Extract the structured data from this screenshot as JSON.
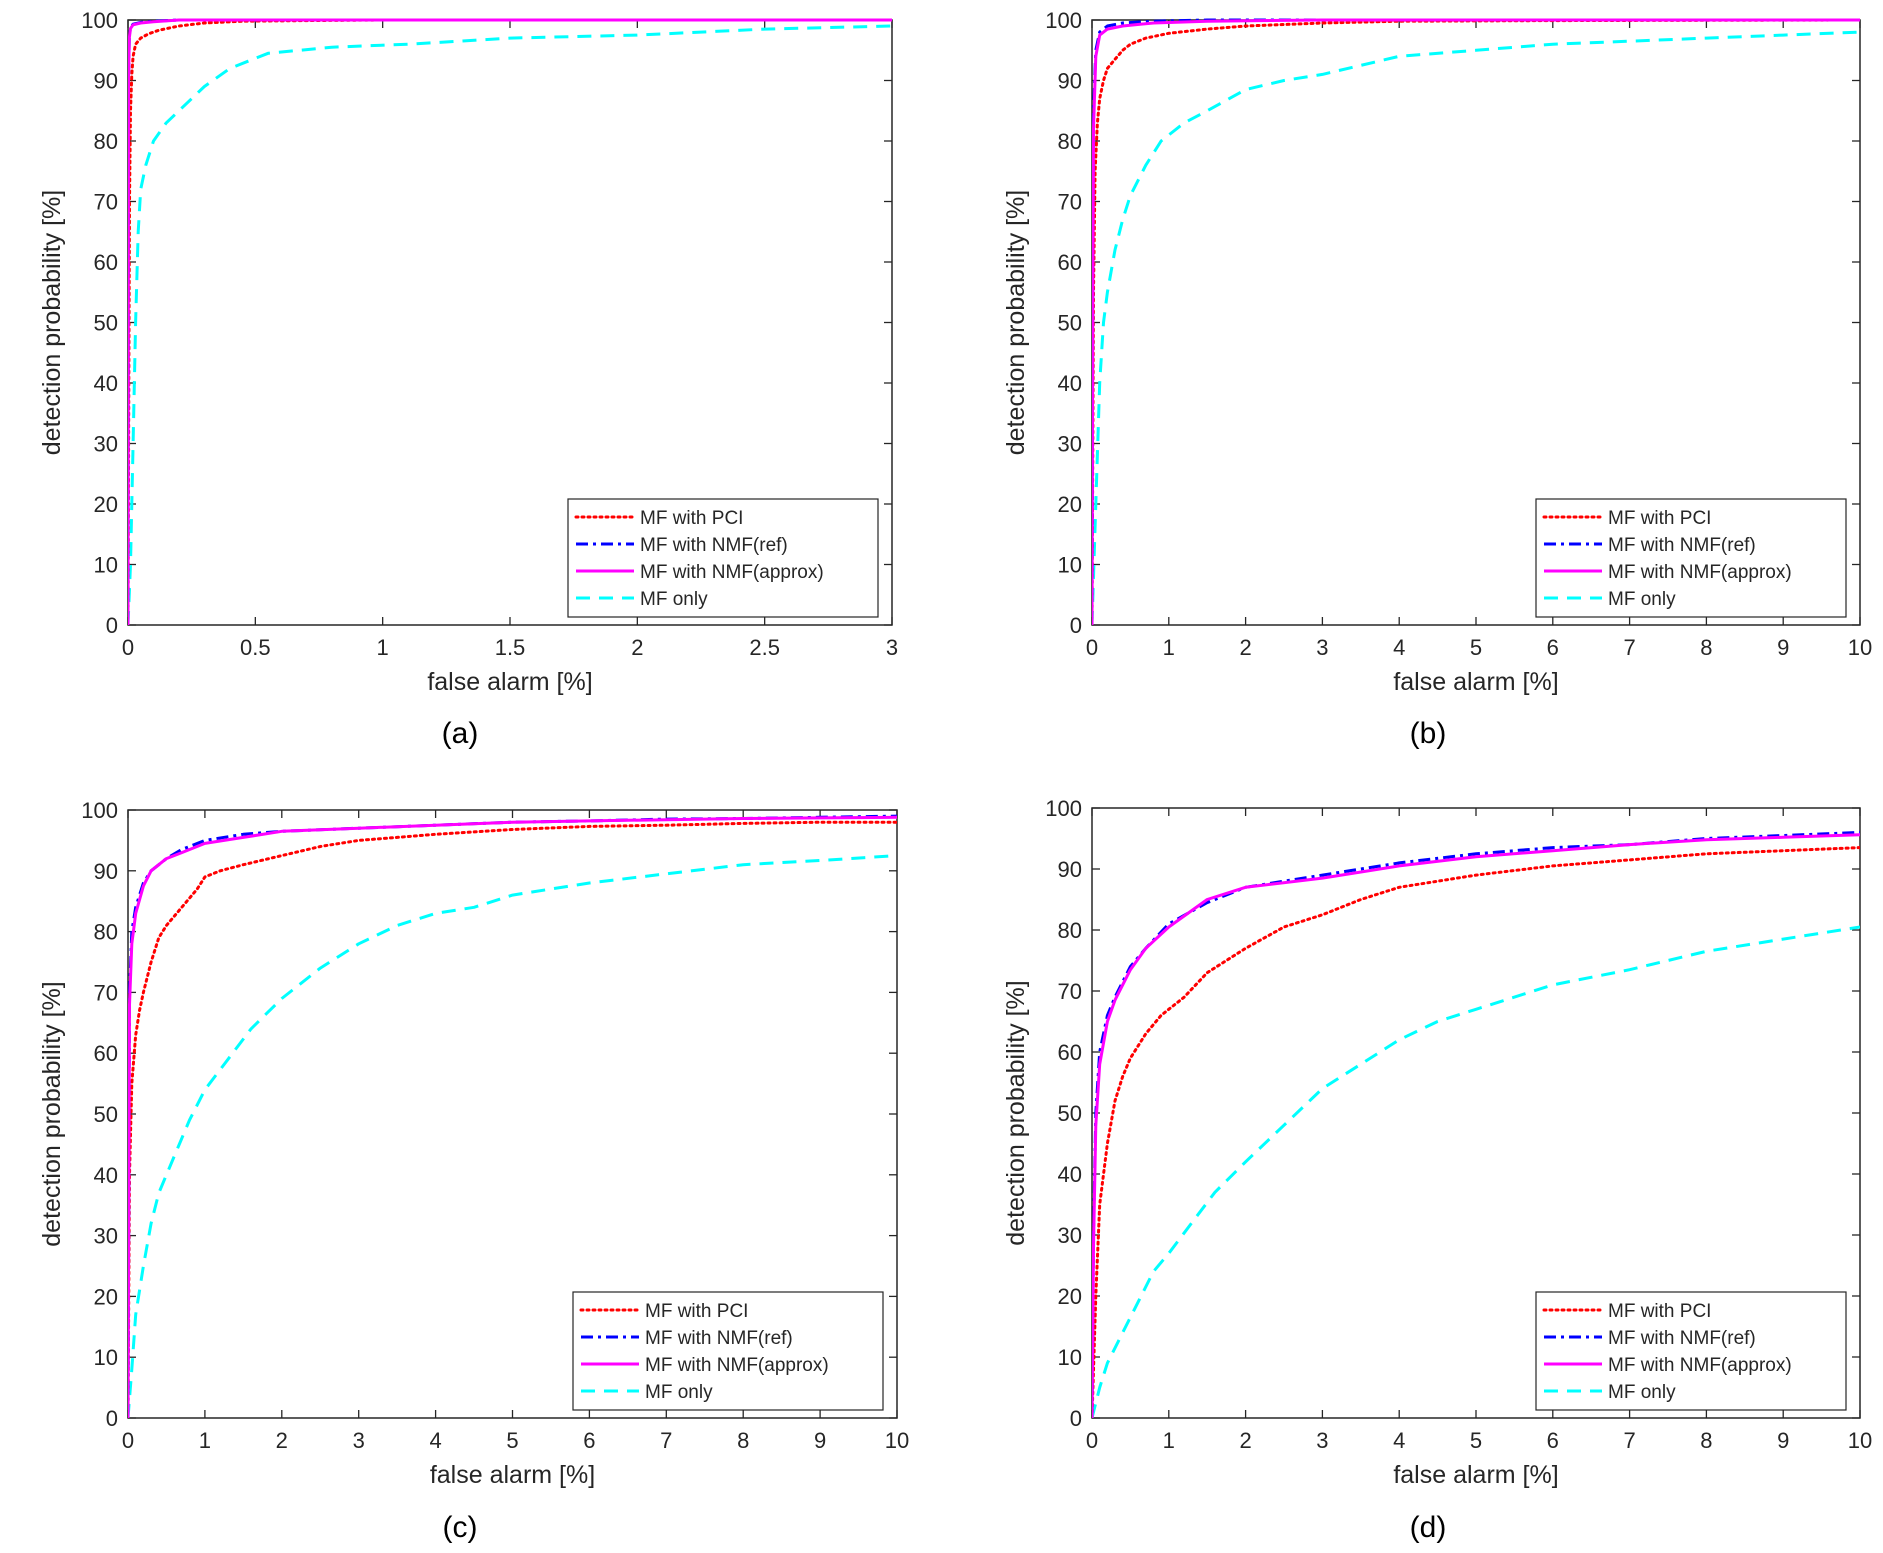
{
  "chart_data": [
    {
      "type": "line",
      "caption": "(a)",
      "xlabel": "false alarm [%]",
      "ylabel": "detection probability [%]",
      "xlim": [
        0,
        3
      ],
      "ylim": [
        0,
        100
      ],
      "xticks": [
        0,
        0.5,
        1,
        1.5,
        2,
        2.5,
        3
      ],
      "xtick_labels": [
        "0",
        "0.5",
        "1",
        "1.5",
        "2",
        "2.5",
        "3"
      ],
      "yticks": [
        0,
        10,
        20,
        30,
        40,
        50,
        60,
        70,
        80,
        90,
        100
      ],
      "ytick_labels": [
        "0",
        "10",
        "20",
        "30",
        "40",
        "50",
        "60",
        "70",
        "80",
        "90",
        "100"
      ],
      "legend_position": "bottom-right",
      "grid": false,
      "series": [
        {
          "name": "MF with PCI",
          "color": "#ff0000",
          "style": "dotted",
          "x": [
            0,
            0.003,
            0.006,
            0.01,
            0.015,
            0.02,
            0.03,
            0.05,
            0.08,
            0.12,
            0.2,
            0.3,
            0.45,
            0.7,
            1.0,
            3.0
          ],
          "y": [
            0,
            40,
            70,
            85,
            91,
            94,
            96,
            97,
            97.7,
            98.3,
            99,
            99.5,
            99.8,
            99.9,
            100,
            100
          ]
        },
        {
          "name": "MF with NMF(ref)",
          "color": "#0000ff",
          "style": "dashdot",
          "x": [
            0,
            0.002,
            0.005,
            0.01,
            0.02,
            0.05,
            0.1,
            0.2,
            3.0
          ],
          "y": [
            0,
            90,
            97,
            98.8,
            99.3,
            99.6,
            99.8,
            100,
            100
          ]
        },
        {
          "name": "MF with NMF(approx)",
          "color": "#ff00ff",
          "style": "solid",
          "x": [
            0,
            0.002,
            0.005,
            0.01,
            0.02,
            0.05,
            0.1,
            0.2,
            3.0
          ],
          "y": [
            0,
            90,
            97,
            98.6,
            99.2,
            99.5,
            99.7,
            100,
            100
          ]
        },
        {
          "name": "MF only",
          "color": "#00ffff",
          "style": "dashed",
          "x": [
            0,
            0.01,
            0.02,
            0.03,
            0.04,
            0.05,
            0.07,
            0.1,
            0.15,
            0.2,
            0.3,
            0.4,
            0.55,
            0.8,
            1.1,
            1.5,
            2.0,
            2.5,
            3.0
          ],
          "y": [
            0,
            10,
            30,
            50,
            65,
            72,
            76,
            80,
            83,
            85,
            89,
            92,
            94.5,
            95.5,
            96,
            97,
            97.5,
            98.5,
            99
          ]
        }
      ]
    },
    {
      "type": "line",
      "caption": "(b)",
      "xlabel": "false alarm [%]",
      "ylabel": "detection probability [%]",
      "xlim": [
        0,
        10
      ],
      "ylim": [
        0,
        100
      ],
      "xticks": [
        0,
        1,
        2,
        3,
        4,
        5,
        6,
        7,
        8,
        9,
        10
      ],
      "xtick_labels": [
        "0",
        "1",
        "2",
        "3",
        "4",
        "5",
        "6",
        "7",
        "8",
        "9",
        "10"
      ],
      "yticks": [
        0,
        10,
        20,
        30,
        40,
        50,
        60,
        70,
        80,
        90,
        100
      ],
      "ytick_labels": [
        "0",
        "10",
        "20",
        "30",
        "40",
        "50",
        "60",
        "70",
        "80",
        "90",
        "100"
      ],
      "legend_position": "bottom-right",
      "grid": false,
      "series": [
        {
          "name": "MF with PCI",
          "color": "#ff0000",
          "style": "dotted",
          "x": [
            0,
            0.01,
            0.02,
            0.04,
            0.07,
            0.1,
            0.15,
            0.2,
            0.3,
            0.4,
            0.5,
            0.7,
            1.0,
            1.5,
            2.0,
            3.0,
            4.0,
            6.0,
            10.0
          ],
          "y": [
            0,
            30,
            55,
            75,
            83,
            87,
            90,
            92,
            93.5,
            95,
            96,
            97,
            97.8,
            98.5,
            99,
            99.5,
            99.8,
            99.9,
            100
          ]
        },
        {
          "name": "MF with NMF(ref)",
          "color": "#0000ff",
          "style": "dashdot",
          "x": [
            0,
            0.01,
            0.02,
            0.05,
            0.1,
            0.2,
            0.4,
            0.8,
            1.5,
            3.0,
            10.0
          ],
          "y": [
            0,
            60,
            85,
            95,
            98,
            99,
            99.5,
            99.8,
            100,
            100,
            100
          ]
        },
        {
          "name": "MF with NMF(approx)",
          "color": "#ff00ff",
          "style": "solid",
          "x": [
            0,
            0.01,
            0.02,
            0.05,
            0.1,
            0.2,
            0.4,
            0.8,
            1.5,
            3.0,
            10.0
          ],
          "y": [
            0,
            55,
            82,
            94,
            97.5,
            98.5,
            99,
            99.5,
            99.8,
            100,
            100
          ]
        },
        {
          "name": "MF only",
          "color": "#00ffff",
          "style": "dashed",
          "x": [
            0,
            0.05,
            0.1,
            0.15,
            0.2,
            0.3,
            0.4,
            0.5,
            0.7,
            0.9,
            1.2,
            1.5,
            2.0,
            2.5,
            3.0,
            3.5,
            4.0,
            5.0,
            6.0,
            7.0,
            8.0,
            9.0,
            10.0
          ],
          "y": [
            0,
            20,
            40,
            50,
            55,
            62,
            67,
            71,
            76,
            80,
            83,
            85,
            88.5,
            90,
            91,
            92.5,
            94,
            95,
            96,
            96.5,
            97,
            97.5,
            98
          ]
        }
      ]
    },
    {
      "type": "line",
      "caption": "(c)",
      "xlabel": "false alarm [%]",
      "ylabel": "detection probability [%]",
      "xlim": [
        0,
        10
      ],
      "ylim": [
        0,
        100
      ],
      "xticks": [
        0,
        1,
        2,
        3,
        4,
        5,
        6,
        7,
        8,
        9,
        10
      ],
      "xtick_labels": [
        "0",
        "1",
        "2",
        "3",
        "4",
        "5",
        "6",
        "7",
        "8",
        "9",
        "10"
      ],
      "yticks": [
        0,
        10,
        20,
        30,
        40,
        50,
        60,
        70,
        80,
        90,
        100
      ],
      "ytick_labels": [
        "0",
        "10",
        "20",
        "30",
        "40",
        "50",
        "60",
        "70",
        "80",
        "90",
        "100"
      ],
      "legend_position": "bottom-right",
      "grid": false,
      "series": [
        {
          "name": "MF with PCI",
          "color": "#ff0000",
          "style": "dotted",
          "x": [
            0,
            0.02,
            0.05,
            0.1,
            0.15,
            0.2,
            0.3,
            0.4,
            0.5,
            0.7,
            0.9,
            1.0,
            1.2,
            1.5,
            2.0,
            2.5,
            3.0,
            3.5,
            4.0,
            5.0,
            6.0,
            7.0,
            8.0,
            9.0,
            10.0
          ],
          "y": [
            0,
            40,
            55,
            63,
            67,
            70,
            75,
            79,
            81,
            84,
            87,
            89,
            90,
            91,
            92.5,
            94,
            95,
            95.5,
            96,
            96.8,
            97.3,
            97.5,
            97.8,
            98,
            98
          ]
        },
        {
          "name": "MF with NMF(ref)",
          "color": "#0000ff",
          "style": "dashdot",
          "x": [
            0,
            0.02,
            0.05,
            0.1,
            0.2,
            0.3,
            0.5,
            0.7,
            1.0,
            1.5,
            2.0,
            3.0,
            4.0,
            5.0,
            6.0,
            7.0,
            8.0,
            9.0,
            10.0
          ],
          "y": [
            0,
            70,
            80,
            84,
            88,
            90,
            92,
            93.5,
            95,
            96,
            96.5,
            97,
            97.5,
            98,
            98.2,
            98.5,
            98.6,
            98.8,
            99
          ]
        },
        {
          "name": "MF with NMF(approx)",
          "color": "#ff00ff",
          "style": "solid",
          "x": [
            0,
            0.02,
            0.05,
            0.1,
            0.2,
            0.3,
            0.5,
            0.7,
            1.0,
            1.5,
            2.0,
            3.0,
            4.0,
            5.0,
            6.0,
            7.0,
            8.0,
            9.0,
            10.0
          ],
          "y": [
            0,
            68,
            78,
            83,
            87.5,
            90,
            92,
            93,
            94.5,
            95.5,
            96.5,
            97,
            97.5,
            98,
            98.2,
            98.4,
            98.6,
            98.7,
            98.8
          ]
        },
        {
          "name": "MF only",
          "color": "#00ffff",
          "style": "dashed",
          "x": [
            0,
            0.05,
            0.1,
            0.2,
            0.3,
            0.4,
            0.6,
            0.8,
            1.0,
            1.3,
            1.6,
            2.0,
            2.5,
            3.0,
            3.5,
            4.0,
            4.5,
            5.0,
            5.5,
            6.0,
            7.0,
            8.0,
            9.0,
            10.0
          ],
          "y": [
            0,
            8,
            17,
            25,
            32,
            37,
            43,
            49,
            54,
            59,
            64,
            69,
            74,
            78,
            81,
            83,
            84,
            86,
            87,
            88,
            89.5,
            91,
            91.7,
            92.5
          ]
        }
      ]
    },
    {
      "type": "line",
      "caption": "(d)",
      "xlabel": "false alarm [%]",
      "ylabel": "detection probability [%]",
      "xlim": [
        0,
        10
      ],
      "ylim": [
        0,
        100
      ],
      "xticks": [
        0,
        1,
        2,
        3,
        4,
        5,
        6,
        7,
        8,
        9,
        10
      ],
      "xtick_labels": [
        "0",
        "1",
        "2",
        "3",
        "4",
        "5",
        "6",
        "7",
        "8",
        "9",
        "10"
      ],
      "yticks": [
        0,
        10,
        20,
        30,
        40,
        50,
        60,
        70,
        80,
        90,
        100
      ],
      "ytick_labels": [
        "0",
        "10",
        "20",
        "30",
        "40",
        "50",
        "60",
        "70",
        "80",
        "90",
        "100"
      ],
      "legend_position": "bottom-right",
      "grid": false,
      "series": [
        {
          "name": "MF with PCI",
          "color": "#ff0000",
          "style": "dotted",
          "x": [
            0,
            0.05,
            0.1,
            0.2,
            0.3,
            0.4,
            0.5,
            0.7,
            0.9,
            1.2,
            1.5,
            2.0,
            2.5,
            3.0,
            3.5,
            4.0,
            5.0,
            6.0,
            7.0,
            8.0,
            9.0,
            10.0
          ],
          "y": [
            0,
            20,
            35,
            45,
            52,
            56,
            59,
            63,
            66,
            69,
            73,
            77,
            80.5,
            82.5,
            85,
            87,
            89,
            90.5,
            91.5,
            92.5,
            93,
            93.5
          ]
        },
        {
          "name": "MF with NMF(ref)",
          "color": "#0000ff",
          "style": "dashdot",
          "x": [
            0,
            0.02,
            0.05,
            0.1,
            0.2,
            0.3,
            0.5,
            0.7,
            1.0,
            1.5,
            2.0,
            3.0,
            4.0,
            5.0,
            6.0,
            7.0,
            8.0,
            9.0,
            10.0
          ],
          "y": [
            0,
            30,
            50,
            60,
            66,
            69,
            74,
            77,
            81,
            84.5,
            87,
            89,
            91,
            92.5,
            93.5,
            94,
            95,
            95.5,
            96
          ]
        },
        {
          "name": "MF with NMF(approx)",
          "color": "#ff00ff",
          "style": "solid",
          "x": [
            0,
            0.02,
            0.05,
            0.1,
            0.2,
            0.3,
            0.5,
            0.7,
            1.0,
            1.5,
            2.0,
            3.0,
            4.0,
            5.0,
            6.0,
            7.0,
            8.0,
            9.0,
            10.0
          ],
          "y": [
            0,
            28,
            48,
            58,
            65,
            68.5,
            73.5,
            77,
            80.5,
            85,
            87,
            88.5,
            90.5,
            92,
            93,
            94,
            94.8,
            95.2,
            95.6
          ]
        },
        {
          "name": "MF only",
          "color": "#00ffff",
          "style": "dashed",
          "x": [
            0,
            0.1,
            0.2,
            0.4,
            0.6,
            0.8,
            1.0,
            1.3,
            1.6,
            2.0,
            2.5,
            3.0,
            3.5,
            4.0,
            4.5,
            5.0,
            6.0,
            7.0,
            8.0,
            9.0,
            10.0
          ],
          "y": [
            0,
            5,
            9,
            14,
            19,
            24,
            27,
            32,
            37,
            42,
            48,
            54,
            58,
            62,
            65,
            67,
            71,
            73.5,
            76.5,
            78.5,
            80.5
          ]
        }
      ]
    }
  ]
}
